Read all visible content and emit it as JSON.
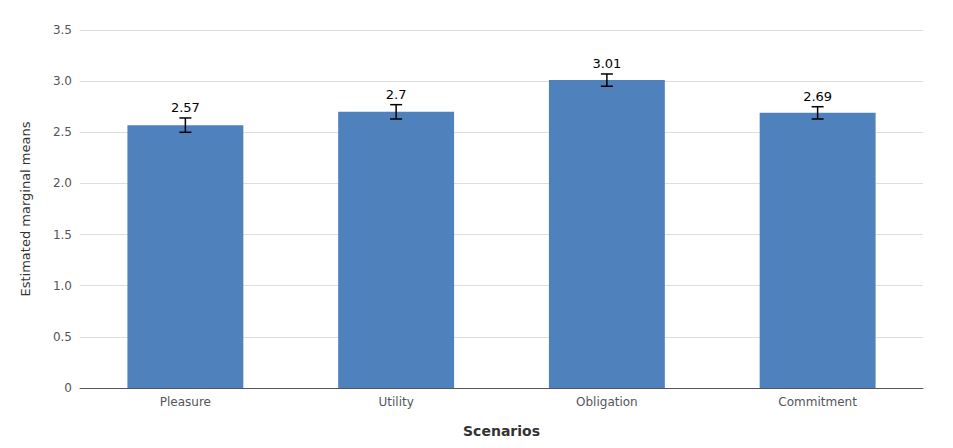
{
  "chart_data": {
    "type": "bar",
    "xlabel": "Scenarios",
    "ylabel": "Estimated marginal means",
    "categories": [
      "Pleasure",
      "Utility",
      "Obligation",
      "Commitment"
    ],
    "values": [
      2.57,
      2.7,
      3.01,
      2.69
    ],
    "errors": [
      0.07,
      0.07,
      0.06,
      0.06
    ],
    "color": "#4F81BD",
    "ylim": [
      0,
      3.5
    ],
    "yticks": [
      0,
      0.5,
      {
        "value": 1,
        "label": "1.0"
      },
      1.5,
      {
        "value": 2,
        "label": "2.0"
      },
      2.5,
      {
        "value": 3,
        "label": "3.0"
      },
      3.5
    ],
    "grid": true,
    "data_labels": true
  }
}
